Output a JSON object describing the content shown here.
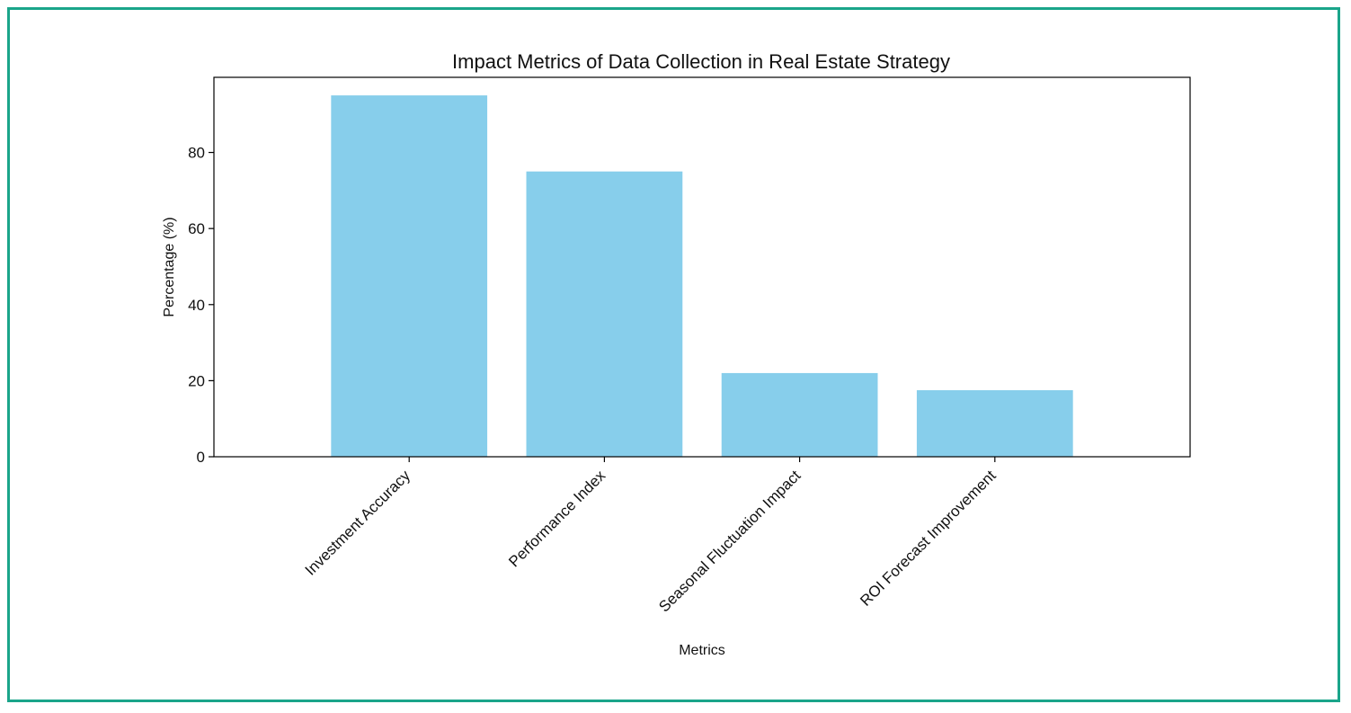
{
  "colors": {
    "bar": "#87ceeb",
    "frame": "#1aa58a",
    "axis": "#000000"
  },
  "chart_data": {
    "type": "bar",
    "title": "Impact Metrics of Data Collection in Real Estate Strategy",
    "xlabel": "Metrics",
    "ylabel": "Percentage (%)",
    "categories": [
      "Investment Accuracy",
      "Performance Index",
      "Seasonal Fluctuation Impact",
      "ROI Forecast Improvement"
    ],
    "values": [
      95,
      75,
      22,
      17.5
    ],
    "ylim": [
      0,
      99.75
    ],
    "yticks": [
      0,
      20,
      40,
      60,
      80
    ],
    "ytick_labels": [
      "0",
      "20",
      "40",
      "60",
      "80"
    ],
    "grid": false,
    "legend": "none"
  }
}
